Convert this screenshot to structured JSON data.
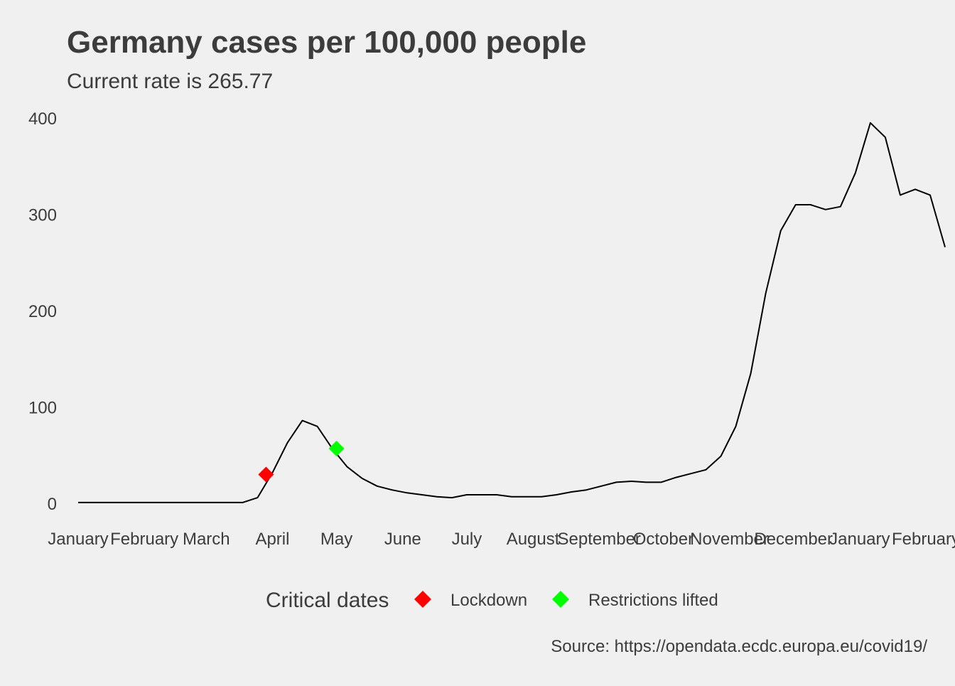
{
  "chart_data": {
    "type": "line",
    "title": "Germany cases per 100,000 people",
    "subtitle": "Current rate is  265.77",
    "caption": "Source: https://opendata.ecdc.europa.eu/covid19/",
    "xlabel": "",
    "ylabel": "",
    "ylim": [
      -5,
      400
    ],
    "yticks": [
      0,
      100,
      200,
      300,
      400
    ],
    "xlim": [
      "2020-01-01",
      "2021-02-02"
    ],
    "xticks": [
      {
        "date": "2020-01-01",
        "label": "January"
      },
      {
        "date": "2020-02-01",
        "label": "February"
      },
      {
        "date": "2020-03-01",
        "label": "March"
      },
      {
        "date": "2020-04-01",
        "label": "April"
      },
      {
        "date": "2020-05-01",
        "label": "May"
      },
      {
        "date": "2020-06-01",
        "label": "June"
      },
      {
        "date": "2020-07-01",
        "label": "July"
      },
      {
        "date": "2020-08-01",
        "label": "August"
      },
      {
        "date": "2020-09-01",
        "label": "September"
      },
      {
        "date": "2020-10-01",
        "label": "October"
      },
      {
        "date": "2020-11-01",
        "label": "November"
      },
      {
        "date": "2020-12-01",
        "label": "December"
      },
      {
        "date": "2021-01-01",
        "label": "January"
      },
      {
        "date": "2021-02-01",
        "label": "February"
      }
    ],
    "grid": false,
    "series": [
      {
        "color": "#000000",
        "points": [
          [
            "2020-01-01",
            1
          ],
          [
            "2020-01-08",
            1
          ],
          [
            "2020-01-15",
            1
          ],
          [
            "2020-01-22",
            1
          ],
          [
            "2020-01-29",
            1
          ],
          [
            "2020-02-05",
            1
          ],
          [
            "2020-02-12",
            1
          ],
          [
            "2020-02-19",
            1
          ],
          [
            "2020-02-26",
            1
          ],
          [
            "2020-03-04",
            1
          ],
          [
            "2020-03-11",
            1
          ],
          [
            "2020-03-18",
            1
          ],
          [
            "2020-03-25",
            6
          ],
          [
            "2020-04-01",
            32
          ],
          [
            "2020-04-08",
            63
          ],
          [
            "2020-04-15",
            86
          ],
          [
            "2020-04-22",
            80
          ],
          [
            "2020-04-29",
            57
          ],
          [
            "2020-05-06",
            38
          ],
          [
            "2020-05-13",
            26
          ],
          [
            "2020-05-20",
            18
          ],
          [
            "2020-05-27",
            14
          ],
          [
            "2020-06-03",
            11
          ],
          [
            "2020-06-10",
            9
          ],
          [
            "2020-06-17",
            7
          ],
          [
            "2020-06-24",
            6
          ],
          [
            "2020-07-01",
            9
          ],
          [
            "2020-07-08",
            9
          ],
          [
            "2020-07-15",
            9
          ],
          [
            "2020-07-22",
            7
          ],
          [
            "2020-07-29",
            7
          ],
          [
            "2020-08-05",
            7
          ],
          [
            "2020-08-12",
            9
          ],
          [
            "2020-08-19",
            12
          ],
          [
            "2020-08-26",
            14
          ],
          [
            "2020-09-02",
            18
          ],
          [
            "2020-09-09",
            22
          ],
          [
            "2020-09-16",
            23
          ],
          [
            "2020-09-23",
            22
          ],
          [
            "2020-09-30",
            22
          ],
          [
            "2020-10-07",
            27
          ],
          [
            "2020-10-14",
            31
          ],
          [
            "2020-10-21",
            35
          ],
          [
            "2020-10-28",
            49
          ],
          [
            "2020-11-04",
            80
          ],
          [
            "2020-11-11",
            135
          ],
          [
            "2020-11-18",
            218
          ],
          [
            "2020-11-25",
            283
          ],
          [
            "2020-12-02",
            310
          ],
          [
            "2020-12-09",
            310
          ],
          [
            "2020-12-16",
            305
          ],
          [
            "2020-12-23",
            308
          ],
          [
            "2020-12-30",
            343
          ],
          [
            "2021-01-06",
            395
          ],
          [
            "2021-01-13",
            380
          ],
          [
            "2021-01-20",
            320
          ],
          [
            "2021-01-27",
            326
          ],
          [
            "2021-02-03",
            320
          ],
          [
            "2021-02-10",
            266
          ]
        ]
      }
    ],
    "markers": [
      {
        "date": "2020-03-29",
        "value": 30,
        "color": "#ff0000"
      },
      {
        "date": "2020-05-01",
        "value": 57,
        "color": "#00ff00"
      }
    ],
    "legend": {
      "title": "Critical dates",
      "position": "bottom",
      "items": [
        {
          "label": "Lockdown",
          "color": "#ff0000"
        },
        {
          "label": "Restrictions lifted",
          "color": "#00ff00"
        }
      ]
    }
  }
}
